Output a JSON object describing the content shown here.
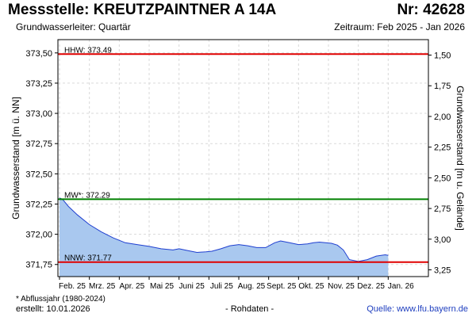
{
  "header": {
    "title": "Messstelle: KREUTZPAINTNER A 14A",
    "number": "Nr: 42628",
    "aquifer": "Grundwasserleiter: Quartär",
    "period": "Zeitraum: Feb 2025 - Jan 2026"
  },
  "footer": {
    "footnote": "* Abflussjahr (1980-2024)",
    "created": "erstellt:  10.01.2026",
    "rawdata": "- Rohdaten -",
    "source": "Quelle:  www.lfu.bayern.de"
  },
  "colors": {
    "hhw": "#e00000",
    "mw": "#008000",
    "nnw": "#e00000",
    "fill": "#a9c8ef",
    "line": "#1f3fd0",
    "grid": "#d9d9d9"
  },
  "chart_data": {
    "type": "area",
    "ylabel": "Grundwasserstand [m ü. NN]",
    "y2label": "Grundwasserstand [m u. Gelände]",
    "ylim": [
      371.65,
      373.61
    ],
    "yticks": [
      "373,50",
      "373,25",
      "373,00",
      "372,75",
      "372,50",
      "372,25",
      "372,00",
      "371,75"
    ],
    "yticks_values": [
      373.5,
      373.25,
      373.0,
      372.75,
      372.5,
      372.25,
      372.0,
      371.75
    ],
    "y2ticks": [
      "1,50",
      "1,75",
      "2,00",
      "2,25",
      "2,50",
      "2,75",
      "3,00",
      "3,25"
    ],
    "y2ticks_values": [
      1.5,
      1.75,
      2.0,
      2.25,
      2.5,
      2.75,
      3.0,
      3.25
    ],
    "xlim": [
      0,
      12
    ],
    "xticks": [
      "Feb. 25",
      "Mrz. 25",
      "Apr. 25",
      "Mai 25",
      "Juni 25",
      "Juli 25",
      "Aug. 25",
      "Sept. 25",
      "Okt. 25",
      "Nov. 25",
      "Dez. 25",
      "Jan. 26"
    ],
    "xticks_values": [
      0,
      1,
      2,
      3,
      4,
      5,
      6,
      7,
      8,
      9,
      10,
      11
    ],
    "reference_lines": [
      {
        "key": "hhw",
        "label": "HHW: 373.49",
        "value": 373.49
      },
      {
        "key": "mw",
        "label": "MW*: 372.29",
        "value": 372.29
      },
      {
        "key": "nnw",
        "label": "NNW: 371.77",
        "value": 371.77
      }
    ],
    "series": [
      {
        "x": [
          0,
          0.1,
          0.3,
          0.6,
          1.0,
          1.4,
          1.8,
          2.2,
          2.6,
          3.0,
          3.4,
          3.8,
          4.0,
          4.3,
          4.6,
          4.9,
          5.1,
          5.4,
          5.7,
          6.0,
          6.3,
          6.6,
          6.9,
          7.2,
          7.4,
          7.7,
          8.0,
          8.3,
          8.5,
          8.7,
          8.9,
          9.1,
          9.3,
          9.5,
          9.7,
          10.0,
          10.3,
          10.6,
          10.9,
          11.0
        ],
        "values": [
          372.3,
          372.29,
          372.23,
          372.16,
          372.08,
          372.02,
          371.97,
          371.93,
          371.915,
          371.9,
          371.88,
          371.87,
          371.88,
          371.865,
          371.85,
          371.855,
          371.86,
          371.88,
          371.905,
          371.915,
          371.905,
          371.89,
          371.89,
          371.93,
          371.945,
          371.93,
          371.915,
          371.92,
          371.93,
          371.935,
          371.93,
          371.925,
          371.91,
          371.87,
          371.79,
          371.775,
          371.79,
          371.82,
          371.83,
          371.825
        ]
      }
    ]
  }
}
